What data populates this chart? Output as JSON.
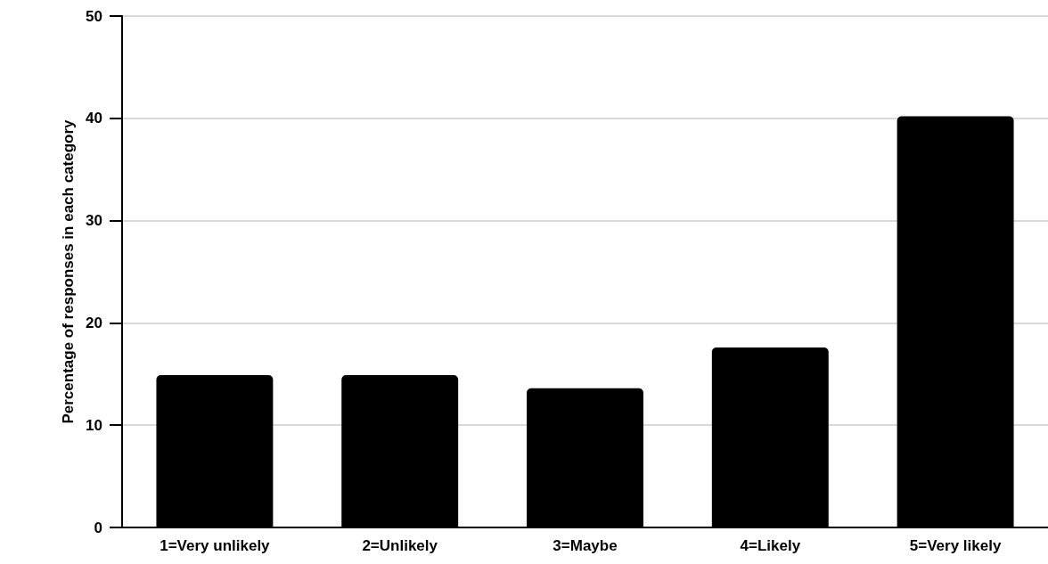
{
  "chart_data": {
    "type": "bar",
    "ylabel": "Percentage of responses in each category",
    "categories": [
      "1=Very unlikely",
      "2=Unlikely",
      "3=Maybe",
      "4=Likely",
      "5=Very likely"
    ],
    "values": [
      14.9,
      14.9,
      13.6,
      17.6,
      40.2
    ],
    "color": "#000000",
    "ylim": [
      0,
      50
    ],
    "yticks": [
      0,
      10,
      20,
      30,
      40,
      50
    ],
    "grid": "y"
  }
}
